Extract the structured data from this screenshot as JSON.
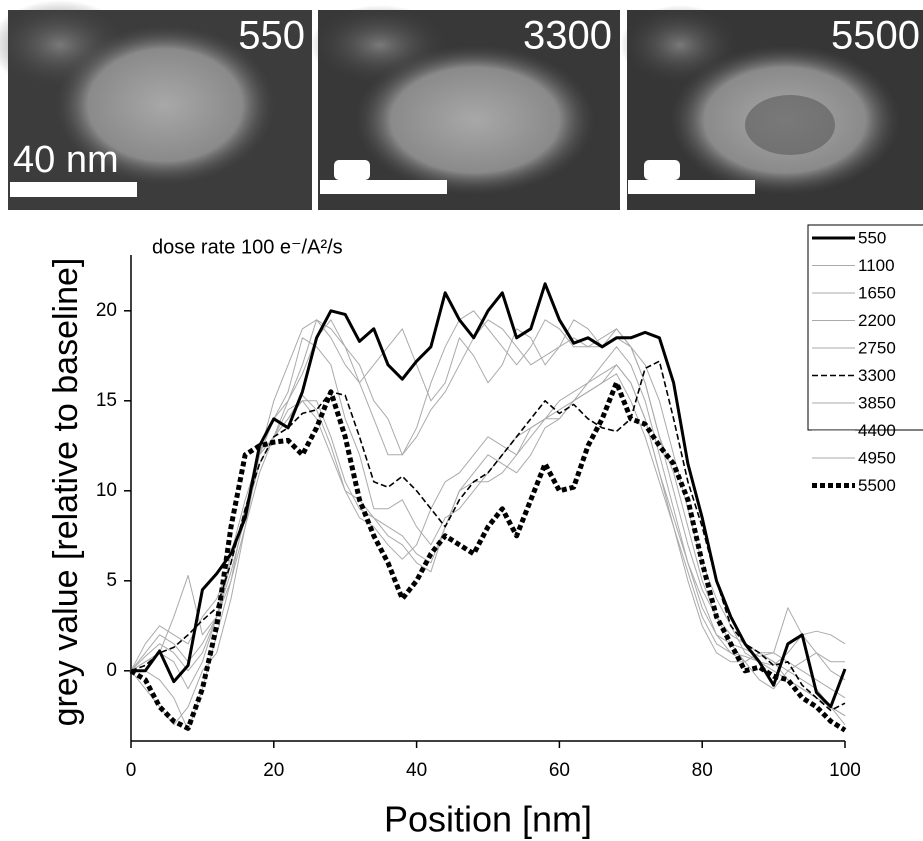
{
  "panels": [
    {
      "label": "550",
      "scale_bar": "40 nm"
    },
    {
      "label": "3300"
    },
    {
      "label": "5500"
    }
  ],
  "chart_data": {
    "type": "line",
    "annotation": "dose rate 100 e⁻/A²/s",
    "x_label": "Position [nm]",
    "y_label": "grey value [relative to baseline]",
    "xlim": [
      0,
      100
    ],
    "xticks": [
      0,
      20,
      40,
      60,
      80,
      100
    ],
    "ylim": [
      -3.9,
      23.1
    ],
    "yticks": [
      0,
      5,
      10,
      15,
      20
    ],
    "x": [
      0,
      2,
      4,
      6,
      8,
      10,
      12,
      14,
      16,
      18,
      20,
      22,
      24,
      26,
      28,
      30,
      32,
      34,
      36,
      38,
      40,
      42,
      44,
      46,
      48,
      50,
      52,
      54,
      56,
      58,
      60,
      62,
      64,
      66,
      68,
      70,
      72,
      74,
      76,
      78,
      80,
      82,
      84,
      86,
      88,
      90,
      92,
      94,
      96,
      98,
      100
    ],
    "series": [
      {
        "name": "550",
        "color": "#000000",
        "dash": "solid",
        "width": 3,
        "values": [
          0,
          0,
          1.1,
          -0.6,
          0.3,
          4.5,
          5.4,
          6.5,
          8.5,
          12.5,
          14,
          13.5,
          15.5,
          18.5,
          20,
          19.8,
          18.3,
          19,
          17,
          16.2,
          17.2,
          18,
          21,
          19.5,
          18.5,
          20,
          21,
          18.5,
          19,
          21.5,
          19.5,
          18.2,
          18.5,
          18,
          18.5,
          18.5,
          18.8,
          18.5,
          16,
          11.5,
          8.5,
          5,
          3,
          1.5,
          0.5,
          -0.8,
          1.5,
          2,
          -1.2,
          -2,
          0.1
        ]
      },
      {
        "name": "1100",
        "color": "#aaaaaa",
        "dash": "solid",
        "width": 1,
        "values": [
          0,
          1.5,
          2.5,
          2,
          1.5,
          3,
          4,
          6,
          9,
          12,
          15,
          17,
          19,
          19.5,
          19,
          18,
          17,
          15,
          14,
          12,
          13.5,
          16,
          18,
          19.5,
          20,
          19,
          18,
          17,
          18,
          19.5,
          19,
          18,
          18,
          18,
          18.5,
          18,
          17,
          15,
          12,
          9,
          6,
          4,
          2.5,
          1,
          0.5,
          0.3,
          1,
          2,
          2.2,
          2,
          1.5
        ]
      },
      {
        "name": "1650",
        "color": "#aaaaaa",
        "dash": "solid",
        "width": 1,
        "values": [
          0,
          0.5,
          1,
          3,
          5.3,
          2,
          3,
          5,
          8,
          11,
          13,
          15,
          17,
          19.5,
          18.5,
          17,
          16,
          17,
          18,
          19,
          17,
          15,
          16,
          18.5,
          17.5,
          16,
          17,
          19,
          18.5,
          17,
          18,
          19.5,
          19,
          18,
          19,
          18,
          16,
          13,
          11,
          8,
          5,
          3,
          1.5,
          0.5,
          1,
          1,
          3.5,
          2,
          1,
          0.5,
          0.5
        ]
      },
      {
        "name": "2200",
        "color": "#aaaaaa",
        "dash": "solid",
        "width": 1,
        "values": [
          0,
          -1,
          -2,
          -3,
          -2,
          0,
          1,
          4,
          8,
          12,
          14,
          15.5,
          18.5,
          18,
          17,
          14,
          12,
          9,
          9,
          9.5,
          8,
          7,
          8.5,
          9,
          10,
          11,
          12,
          13,
          13.5,
          14,
          14.5,
          15,
          16,
          17,
          18,
          17,
          15,
          12,
          9,
          6,
          4,
          2,
          1,
          0.5,
          -0.5,
          -1,
          0,
          0.5,
          1,
          0,
          -0.5
        ]
      },
      {
        "name": "2750",
        "color": "#aaaaaa",
        "dash": "solid",
        "width": 1,
        "values": [
          0,
          0.8,
          1.5,
          1,
          0,
          1,
          3,
          6,
          9,
          12,
          14,
          15,
          16.5,
          18.5,
          19.5,
          18,
          16,
          14,
          12,
          12,
          13,
          14.5,
          15.5,
          17,
          18.5,
          19.5,
          19,
          18,
          17,
          17.5,
          18,
          18.5,
          18,
          18.5,
          19,
          18,
          16,
          13,
          10,
          7,
          4.5,
          3,
          2,
          1.5,
          1,
          0.5,
          0,
          -0.5,
          -1,
          -2,
          -2.5
        ]
      },
      {
        "name": "3300",
        "color": "#000000",
        "dash": "dashed",
        "width": 1.6,
        "values": [
          0,
          0.3,
          1,
          1.3,
          2,
          2.8,
          3.5,
          6,
          9,
          11.5,
          13,
          13.5,
          14.3,
          14.5,
          15.5,
          15.3,
          13,
          10.5,
          10.2,
          10.8,
          10,
          9,
          8,
          9.5,
          10.5,
          11,
          12,
          13,
          14,
          15,
          14.3,
          14.8,
          14,
          13.5,
          13.3,
          14,
          16.8,
          17.2,
          14,
          10.5,
          8,
          5,
          2.5,
          1.5,
          1,
          0.3,
          0.5,
          -0.8,
          -1.5,
          -2.2,
          -1.8
        ]
      },
      {
        "name": "3850",
        "color": "#aaaaaa",
        "dash": "solid",
        "width": 1,
        "values": [
          0,
          1,
          2,
          1.5,
          0.5,
          1.5,
          3,
          5.5,
          8.5,
          11.5,
          13,
          14,
          15,
          15,
          13,
          10.5,
          9,
          8.5,
          8,
          7.5,
          6.5,
          6,
          8,
          10,
          10.5,
          10.5,
          11,
          12,
          13.5,
          14,
          14,
          15,
          15.5,
          16,
          17,
          16,
          14,
          11,
          8.5,
          6,
          3.5,
          2,
          1.5,
          1.2,
          0.8,
          1,
          0.5,
          0,
          -0.5,
          -1,
          -1.5
        ]
      },
      {
        "name": "4400",
        "color": "#aaaaaa",
        "dash": "solid",
        "width": 1,
        "values": [
          0,
          0,
          -0.5,
          -1.5,
          -3.3,
          -1,
          2,
          5,
          9,
          12,
          13,
          14.5,
          15,
          14,
          12,
          10,
          9.5,
          8.5,
          7.5,
          7,
          6,
          5.5,
          8,
          10,
          11,
          12,
          11.5,
          11,
          12,
          13.5,
          14,
          15,
          15.5,
          16,
          16.5,
          15,
          13,
          10.5,
          8,
          5,
          2.5,
          1,
          0.5,
          0.5,
          1,
          0.5,
          -0.5,
          -1,
          -1.5,
          -2,
          -3
        ]
      },
      {
        "name": "4950",
        "color": "#aaaaaa",
        "dash": "solid",
        "width": 1,
        "values": [
          0,
          0.5,
          1,
          0.5,
          -1,
          0.5,
          3,
          6.5,
          9.5,
          12,
          13,
          14,
          15.3,
          14.5,
          12.5,
          10,
          8.5,
          8,
          7,
          6.2,
          7,
          9,
          10.5,
          11,
          12,
          13,
          12.5,
          12,
          13,
          14,
          15,
          15.5,
          16,
          16.5,
          17,
          16,
          14,
          11,
          8,
          5.5,
          3,
          1.5,
          1,
          0.8,
          0.5,
          0,
          -0.5,
          -1,
          -1.5,
          -2,
          -2.5
        ]
      },
      {
        "name": "5500",
        "color": "#000000",
        "dash": "dotted",
        "width": 5,
        "values": [
          0,
          -0.5,
          -2,
          -2.8,
          -3.2,
          -1,
          2.5,
          8,
          12,
          12.5,
          12.7,
          12.8,
          12,
          13.5,
          15.5,
          13,
          9.5,
          7.5,
          6,
          4,
          5,
          6.5,
          7.5,
          7,
          6.5,
          8,
          9,
          7.5,
          9.5,
          11.5,
          10,
          10.2,
          12.5,
          14,
          16,
          14,
          13.7,
          12.5,
          11.5,
          9.5,
          6,
          3,
          1.5,
          0,
          0.2,
          -0.3,
          -0.5,
          -1.5,
          -2,
          -2.8,
          -3.3
        ]
      }
    ]
  }
}
